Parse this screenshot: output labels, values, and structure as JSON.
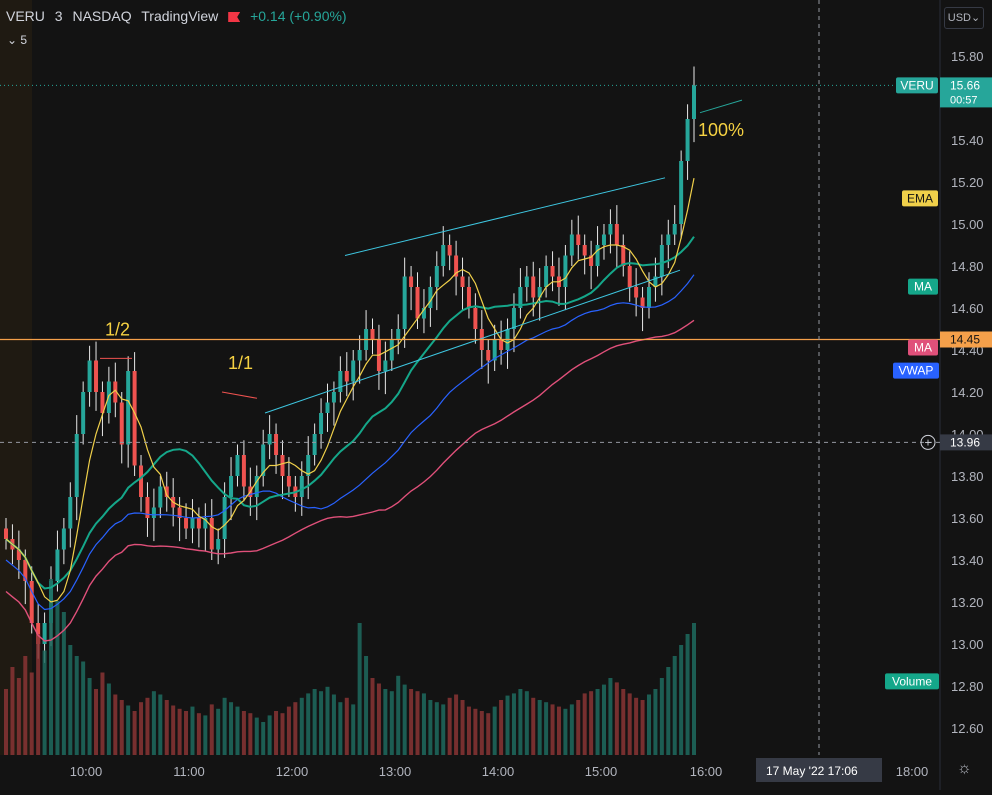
{
  "header": {
    "symbol": "VERU",
    "interval": "3",
    "exchange": "NASDAQ",
    "source": "TradingView",
    "change": "+0.14 (+0.90%)",
    "indicator_count": "5",
    "currency": "USD"
  },
  "colors": {
    "background": "#131313",
    "up": "#26a69a",
    "down": "#ef5350",
    "ema": "#f0d04a",
    "ma_green": "#15a78a",
    "ma_pink": "#e0507a",
    "vwap": "#2962ff",
    "level": "#f5a04a",
    "channel": "#3ec6e0",
    "annotation": "#f5d142"
  },
  "chart_data": {
    "type": "candlestick",
    "title": "VERU · 3 · NASDAQ",
    "x_ticks": [
      "10:00",
      "11:00",
      "12:00",
      "13:00",
      "14:00",
      "15:00",
      "16:00",
      "18:00"
    ],
    "y_ticks": [
      12.6,
      12.8,
      13.0,
      13.2,
      13.4,
      13.6,
      13.8,
      14.0,
      14.2,
      14.4,
      14.6,
      14.8,
      15.0,
      15.2,
      15.4,
      15.6,
      15.8
    ],
    "ylim": [
      12.5,
      16.0
    ],
    "last_price": 15.66,
    "countdown": "00:57",
    "horizontal_level": 14.45,
    "crosshair_price": 13.96,
    "crosshair_date": "17 May '22",
    "crosshair_time": "17:06",
    "labels": {
      "symbol": "VERU",
      "ema": "EMA",
      "ma1": "MA",
      "ma2": "MA",
      "vwap": "VWAP",
      "volume": "Volume"
    },
    "annotations": [
      "1/2",
      "1/1",
      "100%"
    ],
    "ohlc_close": [
      13.5,
      13.45,
      13.4,
      13.3,
      13.1,
      13.0,
      13.1,
      13.3,
      13.45,
      13.55,
      13.7,
      14.0,
      14.2,
      14.35,
      14.2,
      14.1,
      14.25,
      14.15,
      13.95,
      14.3,
      13.85,
      13.7,
      13.6,
      13.65,
      13.75,
      13.7,
      13.65,
      13.6,
      13.55,
      13.6,
      13.55,
      13.6,
      13.45,
      13.5,
      13.7,
      13.8,
      13.9,
      13.75,
      13.7,
      13.8,
      13.95,
      14.0,
      13.9,
      13.8,
      13.75,
      13.7,
      13.8,
      13.9,
      14.0,
      14.1,
      14.15,
      14.2,
      14.3,
      14.25,
      14.35,
      14.4,
      14.5,
      14.45,
      14.3,
      14.35,
      14.45,
      14.5,
      14.75,
      14.7,
      14.55,
      14.6,
      14.7,
      14.8,
      14.9,
      14.85,
      14.75,
      14.7,
      14.6,
      14.5,
      14.4,
      14.35,
      14.45,
      14.4,
      14.5,
      14.6,
      14.7,
      14.75,
      14.65,
      14.7,
      14.8,
      14.75,
      14.7,
      14.85,
      14.95,
      14.9,
      14.85,
      14.8,
      14.9,
      14.95,
      15.0,
      14.9,
      14.8,
      14.7,
      14.65,
      14.6,
      14.7,
      14.75,
      14.9,
      14.95,
      15.0,
      15.3,
      15.5,
      15.66
    ],
    "volume": [
      60,
      80,
      70,
      90,
      75,
      110,
      95,
      160,
      140,
      130,
      100,
      90,
      85,
      70,
      60,
      75,
      65,
      55,
      50,
      45,
      40,
      48,
      52,
      58,
      55,
      50,
      45,
      42,
      40,
      44,
      38,
      36,
      46,
      42,
      52,
      48,
      44,
      40,
      38,
      34,
      30,
      36,
      40,
      38,
      44,
      48,
      52,
      56,
      60,
      58,
      62,
      55,
      48,
      52,
      46,
      120,
      90,
      70,
      65,
      60,
      58,
      72,
      64,
      60,
      58,
      56,
      50,
      48,
      46,
      52,
      55,
      50,
      44,
      42,
      40,
      38,
      44,
      50,
      54,
      56,
      60,
      58,
      52,
      50,
      48,
      46,
      44,
      42,
      46,
      50,
      56,
      58,
      60,
      64,
      70,
      66,
      60,
      56,
      52,
      50,
      55,
      60,
      70,
      80,
      90,
      100,
      110,
      120
    ]
  }
}
